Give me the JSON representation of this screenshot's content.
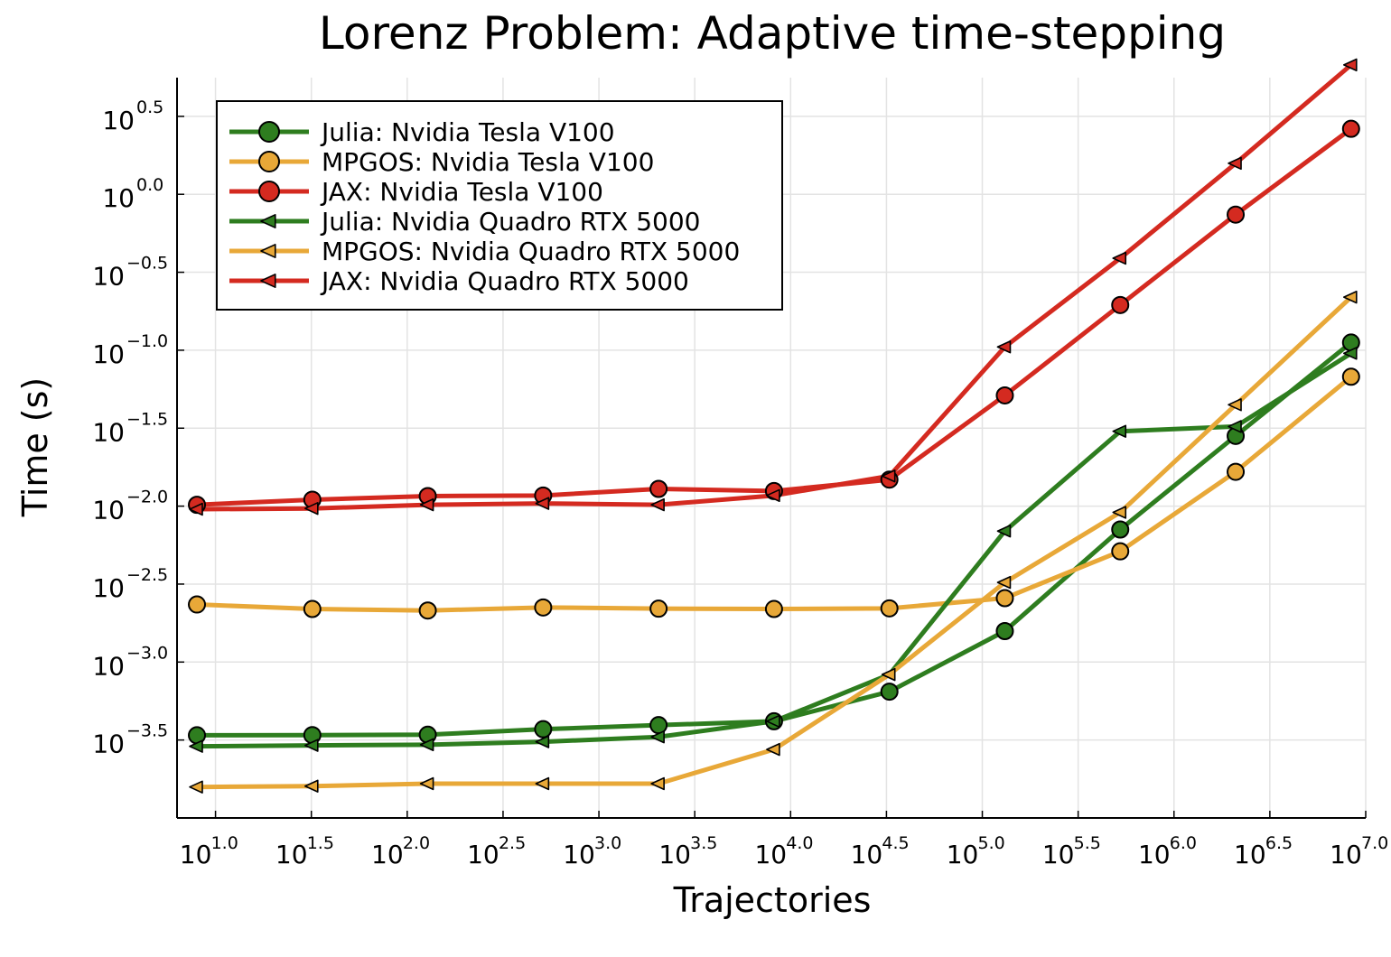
{
  "chart_data": {
    "type": "line",
    "title": "Lorenz Problem: Adaptive time-stepping",
    "xlabel": "Trajectories",
    "ylabel": "Time (s)",
    "x_scale": "log10",
    "y_scale": "log10",
    "xlim": [
      6.3,
      10000000
    ],
    "ylim": [
      0.0001,
      5.6
    ],
    "x_ticks": [
      {
        "base": "10",
        "exp": "1.0"
      },
      {
        "base": "10",
        "exp": "1.5"
      },
      {
        "base": "10",
        "exp": "2.0"
      },
      {
        "base": "10",
        "exp": "2.5"
      },
      {
        "base": "10",
        "exp": "3.0"
      },
      {
        "base": "10",
        "exp": "3.5"
      },
      {
        "base": "10",
        "exp": "4.0"
      },
      {
        "base": "10",
        "exp": "4.5"
      },
      {
        "base": "10",
        "exp": "5.0"
      },
      {
        "base": "10",
        "exp": "5.5"
      },
      {
        "base": "10",
        "exp": "6.0"
      },
      {
        "base": "10",
        "exp": "6.5"
      },
      {
        "base": "10",
        "exp": "7.0"
      }
    ],
    "y_ticks": [
      {
        "base": "10",
        "exp": "0.5"
      },
      {
        "base": "10",
        "exp": "0.0"
      },
      {
        "base": "10",
        "exp": "−0.5"
      },
      {
        "base": "10",
        "exp": "−1.0"
      },
      {
        "base": "10",
        "exp": "−1.5"
      },
      {
        "base": "10",
        "exp": "−2.0"
      },
      {
        "base": "10",
        "exp": "−2.5"
      },
      {
        "base": "10",
        "exp": "−3.0"
      },
      {
        "base": "10",
        "exp": "−3.5"
      }
    ],
    "x": [
      8,
      32,
      128,
      512,
      2048,
      8192,
      32768,
      131072,
      524288,
      2097152,
      8388608
    ],
    "series": [
      {
        "name": "Julia: Nvidia Tesla V100",
        "marker": "circle",
        "color": "#2e7d1f",
        "values": [
          0.000339,
          0.00034,
          0.000342,
          0.000371,
          0.000394,
          0.000417,
          0.000646,
          0.00158,
          0.00708,
          0.0282,
          0.112
        ]
      },
      {
        "name": "MPGOS: Nvidia Tesla V100",
        "marker": "circle",
        "color": "#e8a838",
        "values": [
          0.00234,
          0.00219,
          0.00214,
          0.00224,
          0.0022,
          0.00219,
          0.00221,
          0.00257,
          0.00513,
          0.0166,
          0.0676
        ]
      },
      {
        "name": "JAX: Nvidia Tesla V100",
        "marker": "circle",
        "color": "#d42a20",
        "values": [
          0.0102,
          0.011,
          0.0116,
          0.0117,
          0.0129,
          0.0125,
          0.0148,
          0.0513,
          0.195,
          0.741,
          2.63
        ]
      },
      {
        "name": "Julia: Nvidia Quadro RTX 5000",
        "marker": "triangle-left",
        "color": "#2e7d1f",
        "values": [
          0.000288,
          0.000292,
          0.000295,
          0.000308,
          0.000331,
          0.000417,
          0.000832,
          0.00692,
          0.0302,
          0.0324,
          0.0955
        ]
      },
      {
        "name": "MPGOS: Nvidia Quadro RTX 5000",
        "marker": "triangle-left",
        "color": "#e8a838",
        "values": [
          0.000158,
          0.00016,
          0.000166,
          0.000166,
          0.000166,
          0.000275,
          0.000832,
          0.00324,
          0.00912,
          0.0447,
          0.219
        ]
      },
      {
        "name": "JAX: Nvidia Quadro RTX 5000",
        "marker": "triangle-left",
        "color": "#d42a20",
        "values": [
          0.00955,
          0.00966,
          0.0102,
          0.0104,
          0.0102,
          0.0117,
          0.0156,
          0.105,
          0.389,
          1.58,
          6.76
        ]
      }
    ],
    "grid": true,
    "legend_position": "top-left"
  }
}
